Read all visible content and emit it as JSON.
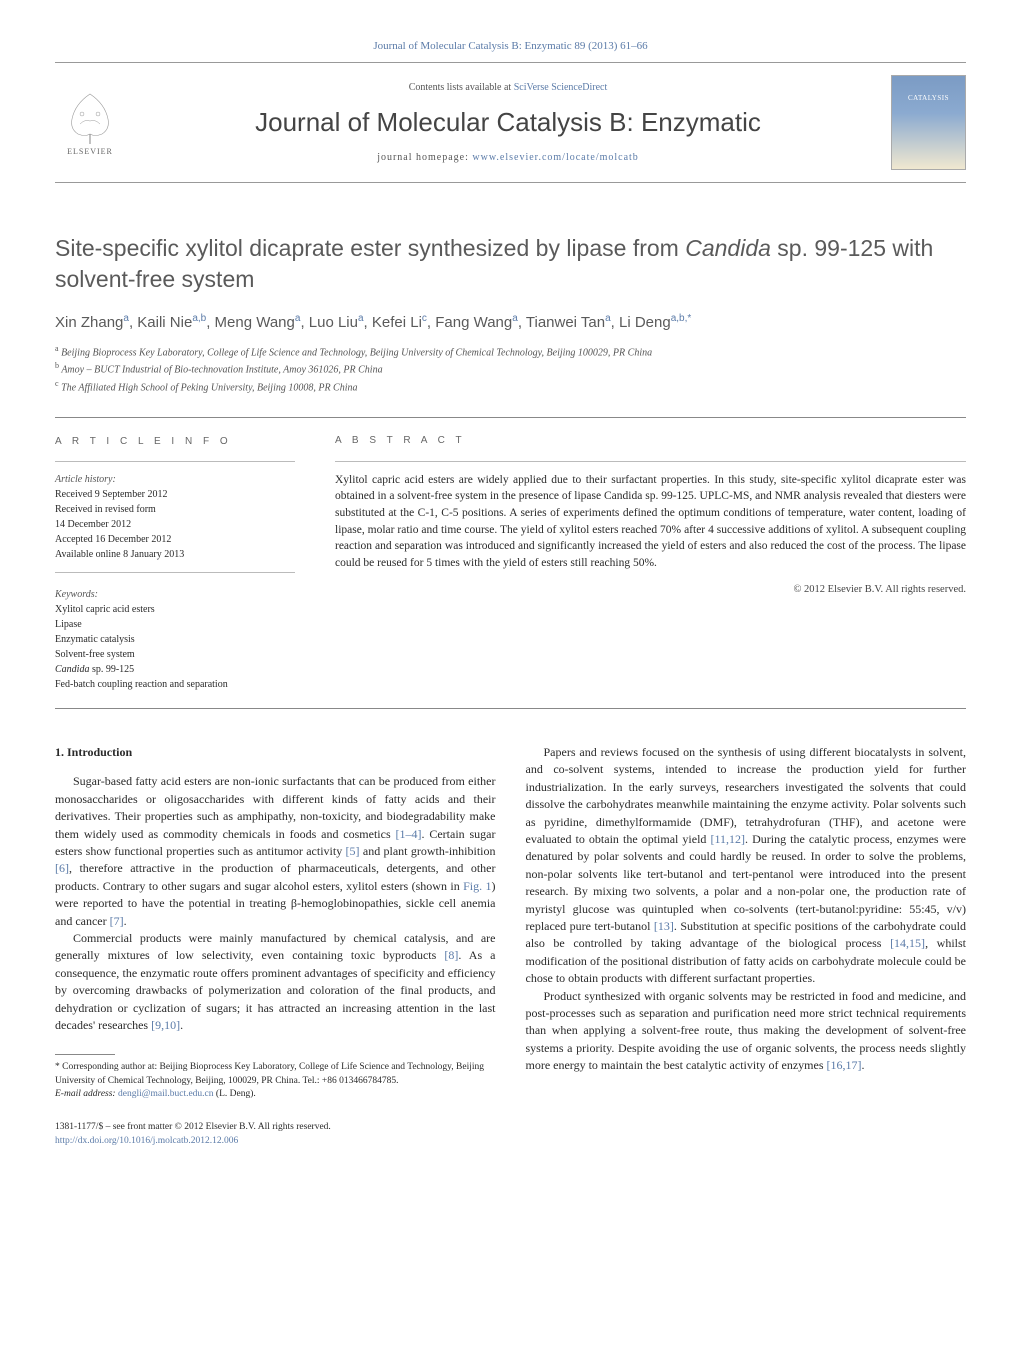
{
  "header": {
    "citation": "Journal of Molecular Catalysis B: Enzymatic 89 (2013) 61–66",
    "contents_prefix": "Contents lists available at ",
    "contents_link": "SciVerse ScienceDirect",
    "journal_name": "Journal of Molecular Catalysis B: Enzymatic",
    "homepage_prefix": "journal homepage: ",
    "homepage_url": "www.elsevier.com/locate/molcatb",
    "elsevier_label": "ELSEVIER",
    "cover_label": "CATALYSIS"
  },
  "title": {
    "pre": "Site-specific xylitol dicaprate ester synthesized by lipase from ",
    "italic": "Candida",
    "post": " sp. 99-125 with solvent-free system"
  },
  "authors_html": "Xin Zhang<sup>a</sup>, Kaili Nie<sup>a,b</sup>, Meng Wang<sup>a</sup>, Luo Liu<sup>a</sup>, Kefei Li<sup>c</sup>, Fang Wang<sup>a</sup>, Tianwei Tan<sup>a</sup>, Li Deng<sup>a,b,*</sup>",
  "affiliations": [
    {
      "sup": "a",
      "text": "Beijing Bioprocess Key Laboratory, College of Life Science and Technology, Beijing University of Chemical Technology, Beijing 100029, PR China"
    },
    {
      "sup": "b",
      "text": "Amoy – BUCT Industrial of Bio-technovation Institute, Amoy 361026, PR China"
    },
    {
      "sup": "c",
      "text": "The Affiliated High School of Peking University, Beijing 10008, PR China"
    }
  ],
  "info": {
    "heading": "A R T I C L E   I N F O",
    "history_label": "Article history:",
    "history": [
      "Received 9 September 2012",
      "Received in revised form",
      "14 December 2012",
      "Accepted 16 December 2012",
      "Available online 8 January 2013"
    ],
    "keywords_label": "Keywords:",
    "keywords": [
      "Xylitol capric acid esters",
      "Lipase",
      "Enzymatic catalysis",
      "Solvent-free system",
      "Candida sp. 99-125",
      "Fed-batch coupling reaction and separation"
    ]
  },
  "abstract": {
    "heading": "A B S T R A C T",
    "text": "Xylitol capric acid esters are widely applied due to their surfactant properties. In this study, site-specific xylitol dicaprate ester was obtained in a solvent-free system in the presence of lipase Candida sp. 99-125. UPLC-MS, and NMR analysis revealed that diesters were substituted at the C-1, C-5 positions. A series of experiments defined the optimum conditions of temperature, water content, loading of lipase, molar ratio and time course. The yield of xylitol esters reached 70% after 4 successive additions of xylitol. A subsequent coupling reaction and separation was introduced and significantly increased the yield of esters and also reduced the cost of the process. The lipase could be reused for 5 times with the yield of esters still reaching 50%.",
    "copyright": "© 2012 Elsevier B.V. All rights reserved."
  },
  "body": {
    "section_no": "1.",
    "section_title": "Introduction",
    "left": [
      "Sugar-based fatty acid esters are non-ionic surfactants that can be produced from either monosaccharides or oligosaccharides with different kinds of fatty acids and their derivatives. Their properties such as amphipathy, non-toxicity, and biodegradability make them widely used as commodity chemicals in foods and cosmetics [1–4]. Certain sugar esters show functional properties such as antitumor activity [5] and plant growth-inhibition [6], therefore attractive in the production of pharmaceuticals, detergents, and other products. Contrary to other sugars and sugar alcohol esters, xylitol esters (shown in Fig. 1) were reported to have the potential in treating β-hemoglobinopathies, sickle cell anemia and cancer [7].",
      "Commercial products were mainly manufactured by chemical catalysis, and are generally mixtures of low selectivity, even containing toxic byproducts [8]. As a consequence, the enzymatic route offers prominent advantages of specificity and efficiency by overcoming drawbacks of polymerization and coloration of the final products, and dehydration or cyclization of sugars; it has attracted an increasing attention in the last decades' researches [9,10]."
    ],
    "right": [
      "Papers and reviews focused on the synthesis of using different biocatalysts in solvent, and co-solvent systems, intended to increase the production yield for further industrialization. In the early surveys, researchers investigated the solvents that could dissolve the carbohydrates meanwhile maintaining the enzyme activity. Polar solvents such as pyridine, dimethylformamide (DMF), tetrahydrofuran (THF), and acetone were evaluated to obtain the optimal yield [11,12]. During the catalytic process, enzymes were denatured by polar solvents and could hardly be reused. In order to solve the problems, non-polar solvents like tert-butanol and tert-pentanol were introduced into the present research. By mixing two solvents, a polar and a non-polar one, the production rate of myristyl glucose was quintupled when co-solvents (tert-butanol:pyridine: 55:45, v/v) replaced pure tert-butanol [13]. Substitution at specific positions of the carbohydrate could also be controlled by taking advantage of the biological process [14,15], whilst modification of the positional distribution of fatty acids on carbohydrate molecule could be chose to obtain products with different surfactant properties.",
      "Product synthesized with organic solvents may be restricted in food and medicine, and post-processes such as separation and purification need more strict technical requirements than when applying a solvent-free route, thus making the development of solvent-free systems a priority. Despite avoiding the use of organic solvents, the process needs slightly more energy to maintain the best catalytic activity of enzymes [16,17]."
    ]
  },
  "footnote": {
    "corresponding": "* Corresponding author at: Beijing Bioprocess Key Laboratory, College of Life Science and Technology, Beijing University of Chemical Technology, Beijing, 100029, PR China. Tel.: +86 013466784785.",
    "email_label": "E-mail address:",
    "email": "dengli@mail.buct.edu.cn",
    "email_name": "(L. Deng)."
  },
  "footer": {
    "line1": "1381-1177/$ – see front matter © 2012 Elsevier B.V. All rights reserved.",
    "doi": "http://dx.doi.org/10.1016/j.molcatb.2012.12.006"
  },
  "refs": {
    "r1_4": "[1–4]",
    "r5": "[5]",
    "r6": "[6]",
    "r7": "[7]",
    "r8": "[8]",
    "r9_10": "[9,10]",
    "r11_12": "[11,12]",
    "r13": "[13]",
    "r14_15": "[14,15]",
    "r16_17": "[16,17]",
    "fig1": "Fig. 1"
  }
}
